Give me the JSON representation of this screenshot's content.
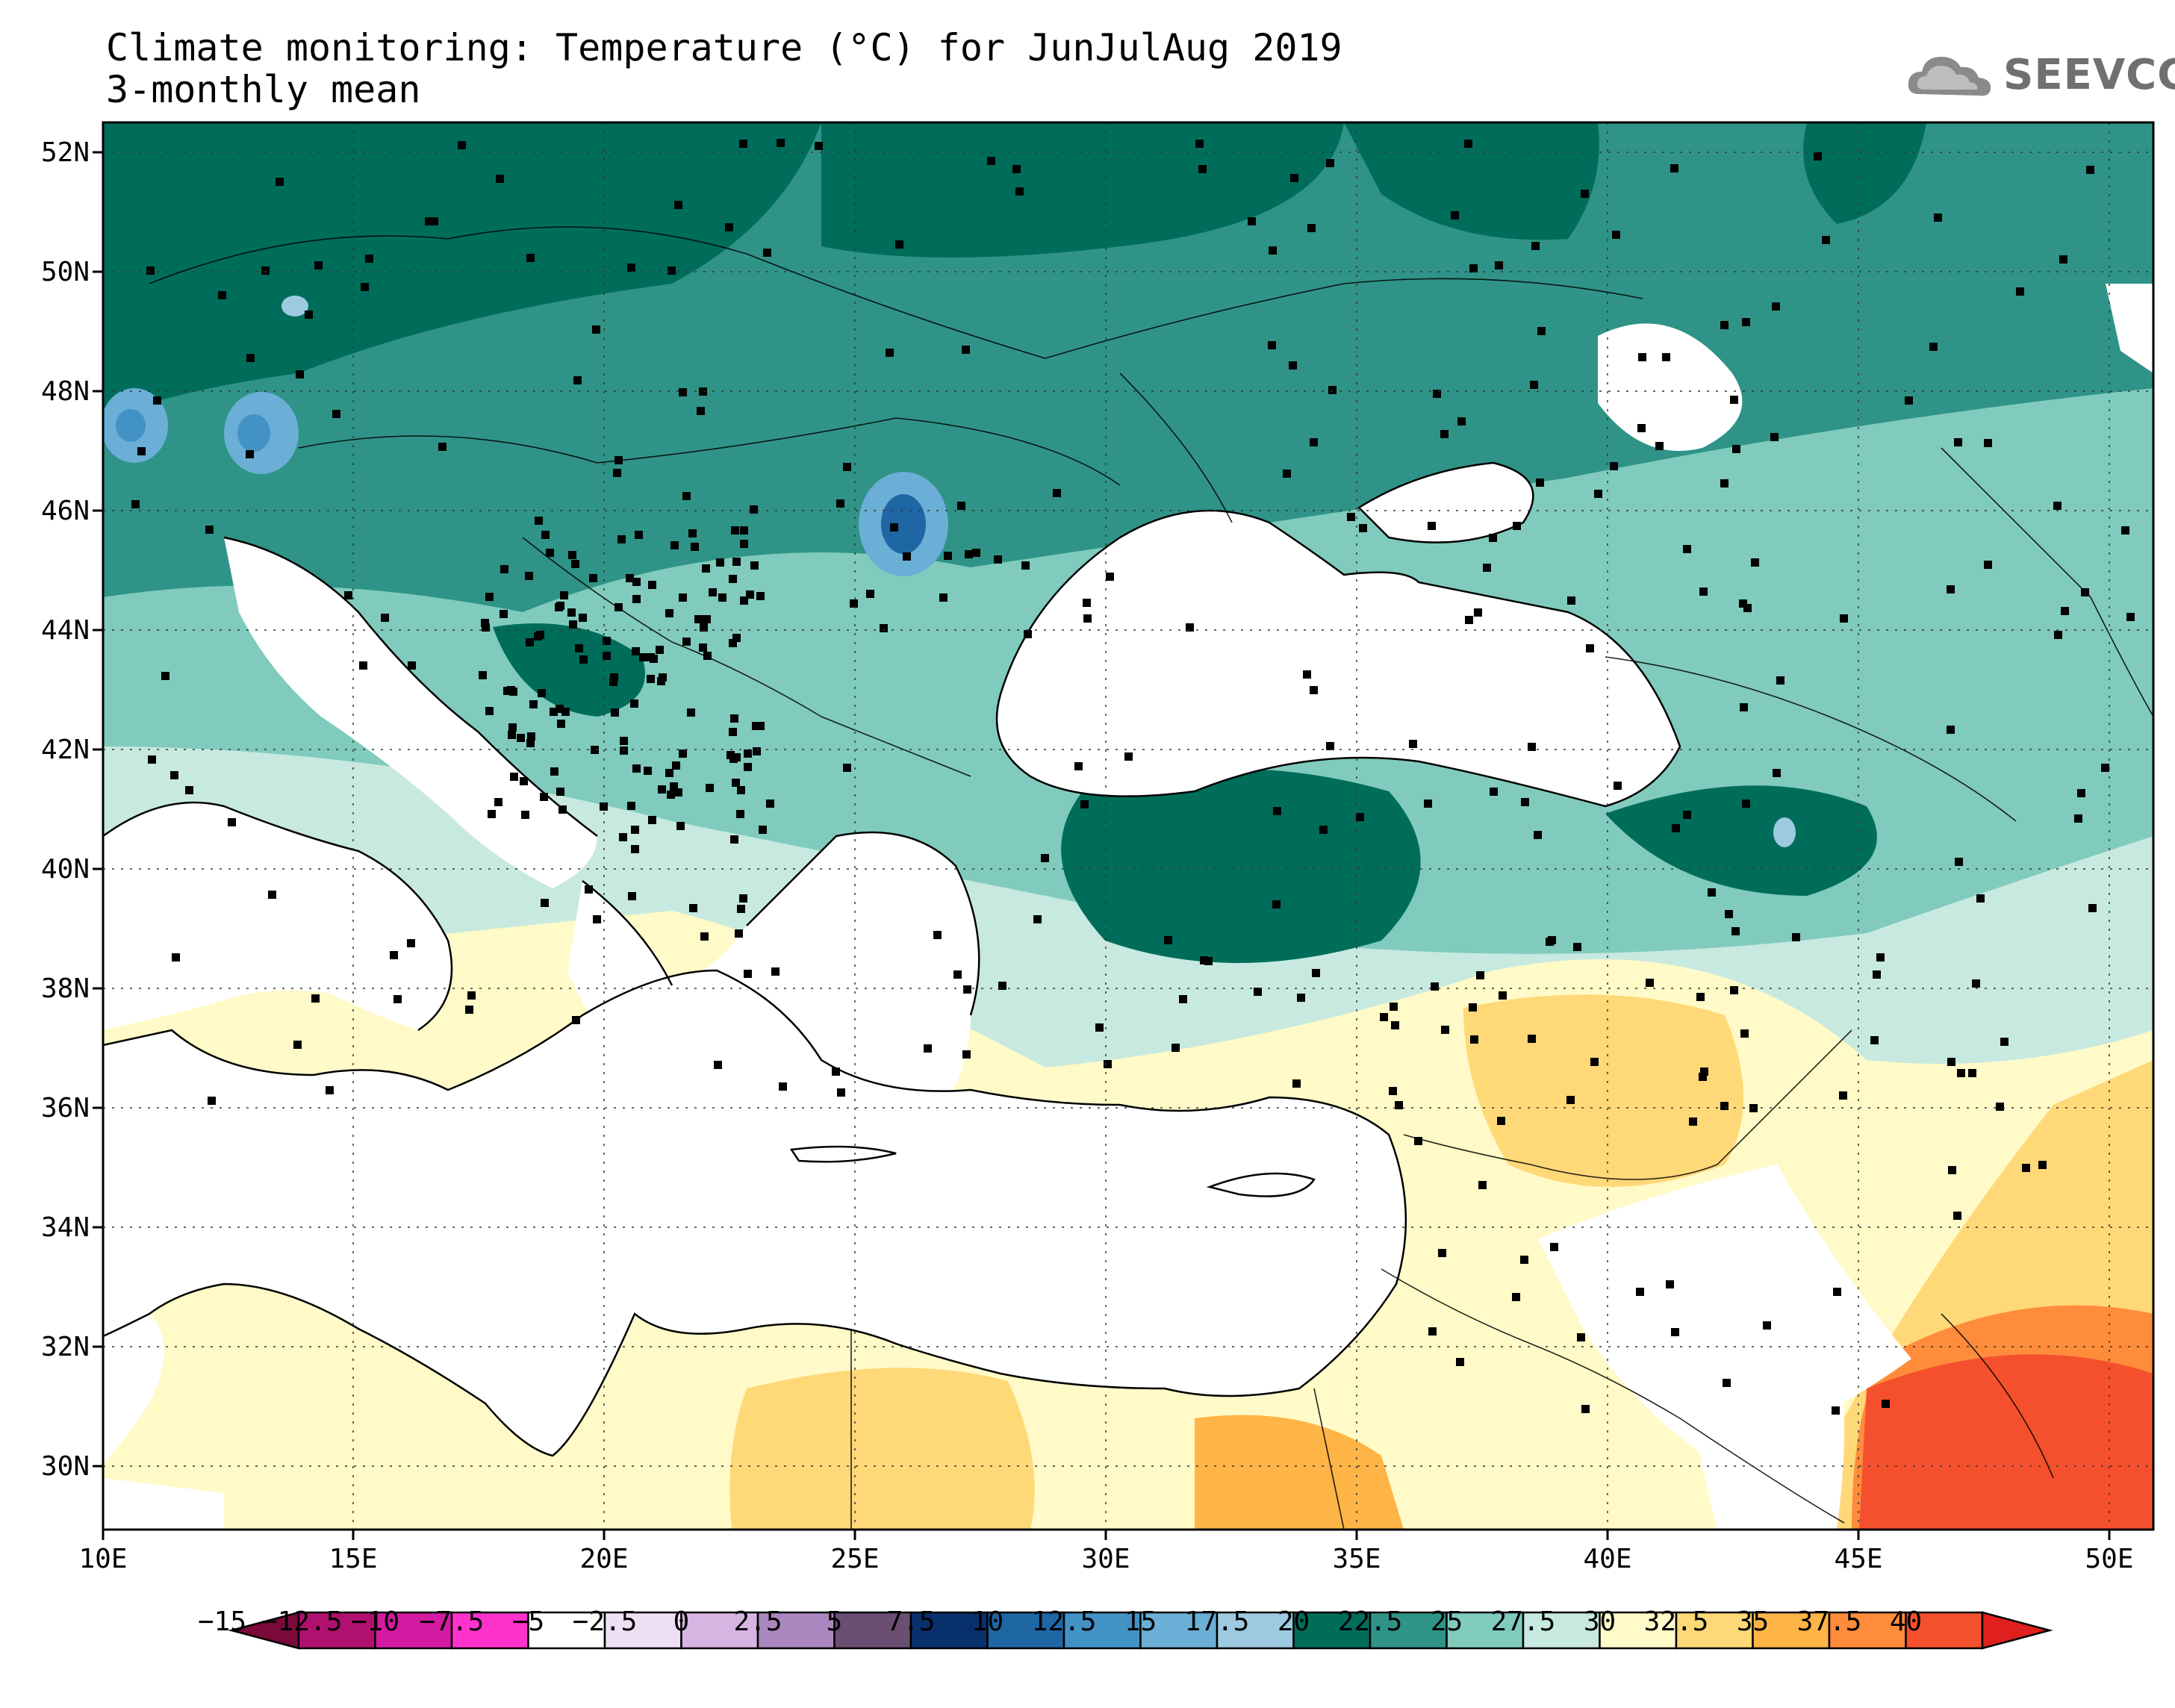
{
  "title_line1": "Climate monitoring: Temperature (°C) for JunJulAug 2019",
  "title_line2": "3-monthly mean",
  "logo": {
    "name": "cloud-icon",
    "text": "SEEVCCC"
  },
  "lat_labels": [
    "52N",
    "50N",
    "48N",
    "46N",
    "44N",
    "42N",
    "40N",
    "38N",
    "36N",
    "34N",
    "32N",
    "30N"
  ],
  "lon_labels": [
    "10E",
    "15E",
    "20E",
    "25E",
    "30E",
    "35E",
    "40E",
    "45E",
    "50E"
  ],
  "colorbar": {
    "labels": [
      "−15",
      "−12.5",
      "−10",
      "−7.5",
      "−5",
      "−2.5",
      "0",
      "2.5",
      "5",
      "7.5",
      "10",
      "12.5",
      "15",
      "17.5",
      "20",
      "22.5",
      "25",
      "27.5",
      "30",
      "32.5",
      "35",
      "37.5",
      "40"
    ],
    "colors": [
      "#8c0f4a",
      "#b0106e",
      "#d41aa0",
      "#ff33cc",
      "#ffffff",
      "#eedff5",
      "#d7b5e3",
      "#ab87bf",
      "#6a4f73",
      "#08306b",
      "#1f66a5",
      "#4292c6",
      "#6baed6",
      "#9ecae1",
      "#006d5b",
      "#2f9487",
      "#80cbbd",
      "#c7e9e0",
      "#fffac7",
      "#ffd878",
      "#ffb447",
      "#ff8c3b",
      "#f5502e"
    ],
    "under_color": "#7a0a3a",
    "over_color": "#e0201e"
  }
}
